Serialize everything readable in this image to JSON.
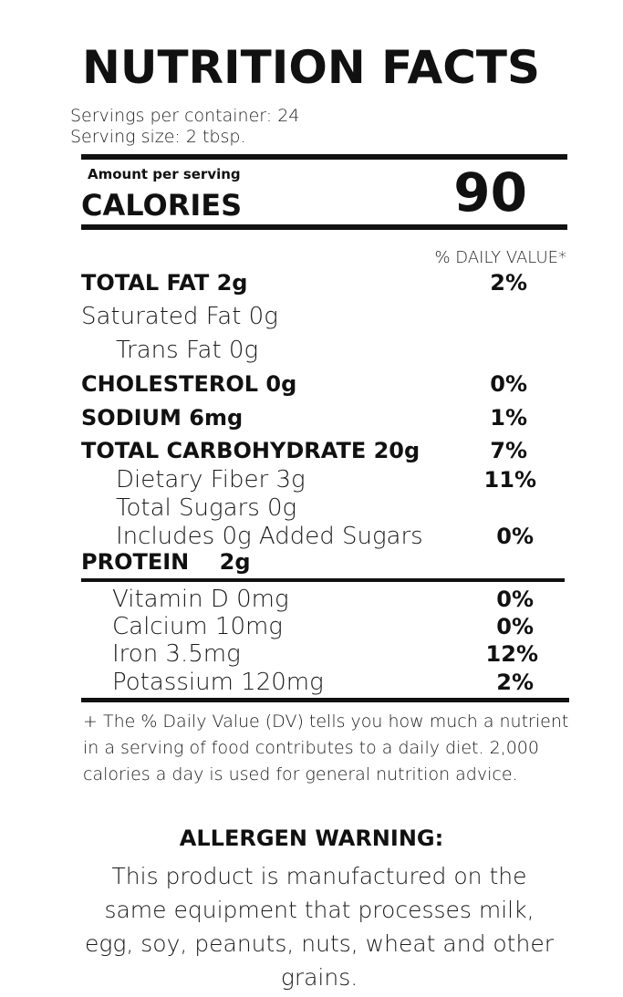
{
  "title": "NUTRITION FACTS",
  "servings_per_container": "Servings per container: 24",
  "serving_size": "Serving size: 2 tbsp.",
  "amount_per_serving": "Amount per serving",
  "calories_label": "CALORIES",
  "calories_value": "90",
  "daily_value_header": "% DAILY VALUE*",
  "nutrients": [
    {
      "label": "TOTAL FAT 2g",
      "dv": "2%"
    },
    {
      "label": "Saturated Fat 0g",
      "dv": ""
    },
    {
      "label": "Trans Fat 0g",
      "dv": ""
    },
    {
      "label": "CHOLESTEROL 0g",
      "dv": "0%"
    },
    {
      "label": "SODIUM 6mg",
      "dv": "1%"
    },
    {
      "label": "TOTAL CARBOHYDRATE 20g",
      "dv": "7%"
    },
    {
      "label": "Dietary Fiber 3g",
      "dv": "11%"
    },
    {
      "label": "Total Sugars 0g",
      "dv": ""
    },
    {
      "label": "Includes 0g Added Sugars",
      "dv": "0%"
    },
    {
      "label": "PROTEIN    2g",
      "dv": ""
    }
  ],
  "vitamins": [
    {
      "label": "Vitamin D 0mg",
      "dv": "0%"
    },
    {
      "label": "Calcium 10mg",
      "dv": "0%"
    },
    {
      "label": "Iron 3.5mg",
      "dv": "12%"
    },
    {
      "label": "Potassium 120mg",
      "dv": "2%"
    }
  ],
  "footnote": "+ The % Daily Value (DV) tells you how much a nutrient in a serving of food contributes to a daily diet.  2,000 calories a day is used for general nutrition advice.",
  "allergen_heading": "ALLERGEN WARNING:",
  "allergen_text": "This product is manufactured on the same equipment that processes milk, egg, soy, peanuts, nuts, wheat and other grains."
}
